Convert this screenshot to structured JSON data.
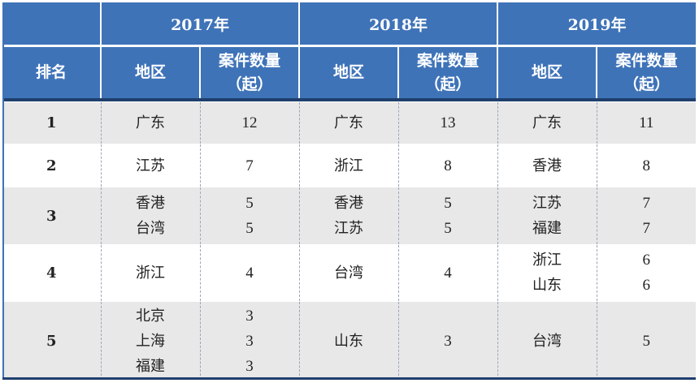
{
  "header": {
    "years": [
      "2017年",
      "2018年",
      "2019年"
    ],
    "rank_label": "排名",
    "region_label": "地区",
    "count_label_line1": "案件数量",
    "count_label_line2": "（起）"
  },
  "rows": [
    {
      "rank": "1",
      "y2017": {
        "regions": [
          "广东"
        ],
        "counts": [
          "12"
        ]
      },
      "y2018": {
        "regions": [
          "广东"
        ],
        "counts": [
          "13"
        ]
      },
      "y2019": {
        "regions": [
          "广东"
        ],
        "counts": [
          "11"
        ]
      }
    },
    {
      "rank": "2",
      "y2017": {
        "regions": [
          "江苏"
        ],
        "counts": [
          "7"
        ]
      },
      "y2018": {
        "regions": [
          "浙江"
        ],
        "counts": [
          "8"
        ]
      },
      "y2019": {
        "regions": [
          "香港"
        ],
        "counts": [
          "8"
        ]
      }
    },
    {
      "rank": "3",
      "y2017": {
        "regions": [
          "香港",
          "台湾"
        ],
        "counts": [
          "5",
          "5"
        ]
      },
      "y2018": {
        "regions": [
          "香港",
          "江苏"
        ],
        "counts": [
          "5",
          "5"
        ]
      },
      "y2019": {
        "regions": [
          "江苏",
          "福建"
        ],
        "counts": [
          "7",
          "7"
        ]
      }
    },
    {
      "rank": "4",
      "y2017": {
        "regions": [
          "浙江"
        ],
        "counts": [
          "4"
        ]
      },
      "y2018": {
        "regions": [
          "台湾"
        ],
        "counts": [
          "4"
        ]
      },
      "y2019": {
        "regions": [
          "浙江",
          "山东"
        ],
        "counts": [
          "6",
          "6"
        ]
      }
    },
    {
      "rank": "5",
      "y2017": {
        "regions": [
          "北京",
          "上海",
          "福建"
        ],
        "counts": [
          "3",
          "3",
          "3"
        ]
      },
      "y2018": {
        "regions": [
          "山东"
        ],
        "counts": [
          "3"
        ]
      },
      "y2019": {
        "regions": [
          "台湾"
        ],
        "counts": [
          "5"
        ]
      }
    }
  ]
}
